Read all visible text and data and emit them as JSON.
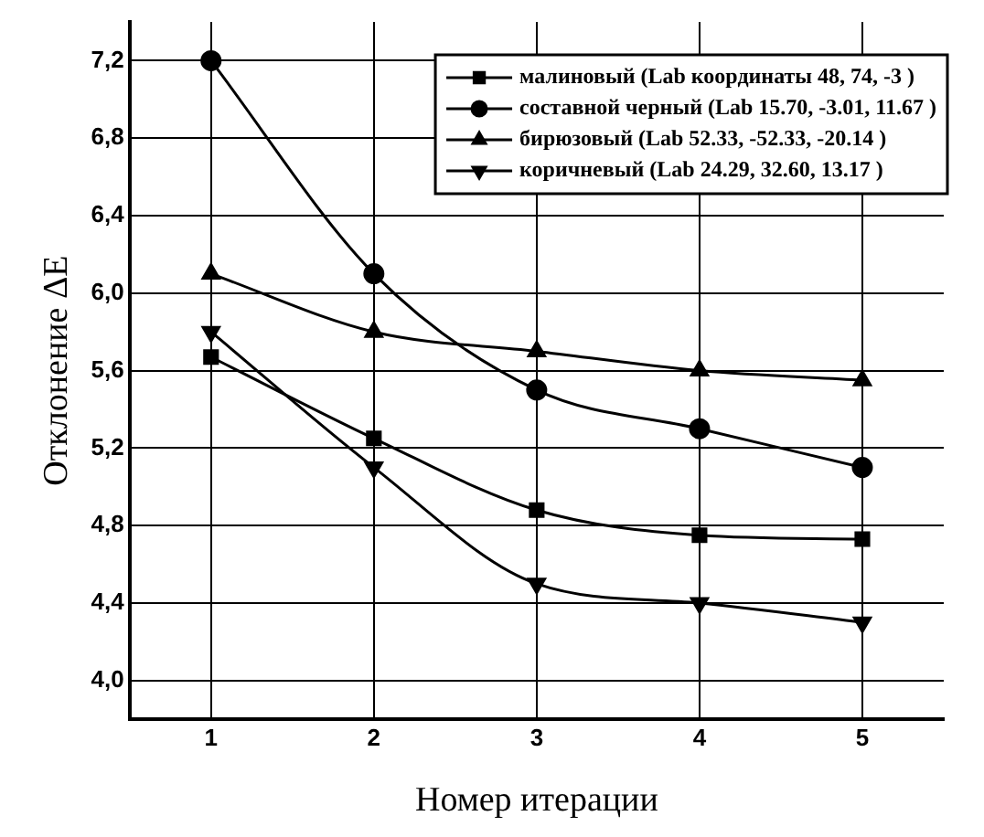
{
  "chart_data": {
    "type": "line",
    "xlabel": "Номер итерации",
    "ylabel": "Отклонение ΔE",
    "x": [
      1,
      2,
      3,
      4,
      5
    ],
    "xlim": [
      0.5,
      5.5
    ],
    "xticks": [
      1,
      2,
      3,
      4,
      5
    ],
    "ylim": [
      3.8,
      7.4
    ],
    "yticks": [
      {
        "value": 4.0,
        "label": "4,0"
      },
      {
        "value": 4.4,
        "label": "4,4"
      },
      {
        "value": 4.8,
        "label": "4,8"
      },
      {
        "value": 5.2,
        "label": "5,2"
      },
      {
        "value": 5.6,
        "label": "5,6"
      },
      {
        "value": 6.0,
        "label": "6,0"
      },
      {
        "value": 6.4,
        "label": "6,4"
      },
      {
        "value": 6.8,
        "label": "6,8"
      },
      {
        "value": 7.2,
        "label": "7,2"
      }
    ],
    "grid": true,
    "legend": "top right",
    "line_style": "solid",
    "series": [
      {
        "name": "малиновый (Lab координаты 48, 74, -3 )",
        "color": "#000000",
        "marker": "square",
        "values": [
          5.67,
          5.25,
          4.88,
          4.75,
          4.73
        ]
      },
      {
        "name": "составной черный (Lab 15.70, -3.01, 11.67 )",
        "color": "#000000",
        "marker": "circle",
        "values": [
          7.2,
          6.1,
          5.5,
          5.3,
          5.1
        ]
      },
      {
        "name": "бирюзовый (Lab 52.33, -52.33, -20.14 )",
        "color": "#000000",
        "marker": "triangle",
        "values": [
          6.1,
          5.8,
          5.7,
          5.6,
          5.55
        ]
      },
      {
        "name": "коричневый (Lab 24.29, 32.60, 13.17 )",
        "color": "#000000",
        "marker": "triangle-down",
        "values": [
          5.8,
          5.1,
          4.5,
          4.4,
          4.3
        ]
      }
    ]
  }
}
